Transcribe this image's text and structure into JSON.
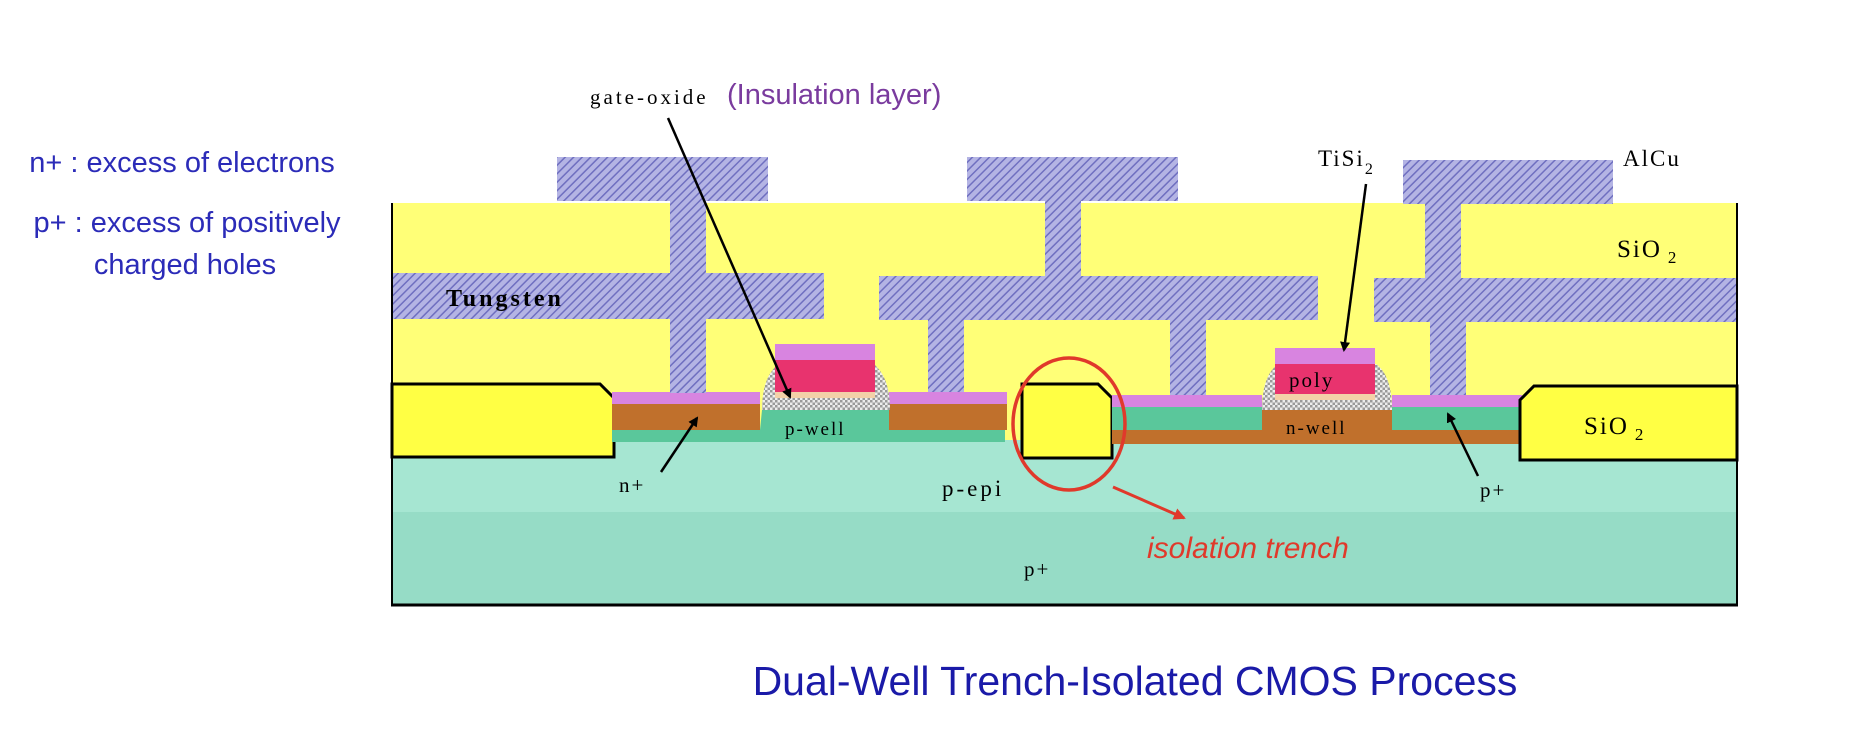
{
  "legend": {
    "n_plus": "n+ : excess of electrons",
    "p_plus_line1": "p+ : excess of positively",
    "p_plus_line2": "charged holes"
  },
  "labels": {
    "gate_oxide": "gate-oxide",
    "insulation_layer": "(Insulation layer)",
    "tisi": "TiSi",
    "tisi_sub": "2",
    "alcu": "AlCu",
    "sio2_top": "SiO",
    "sio2_top_sub": "2",
    "sio2_right": "SiO",
    "sio2_right_sub": "2",
    "tungsten": "Tungsten",
    "poly": "poly",
    "p_well": "p-well",
    "n_well": "n-well",
    "n_plus": "n+",
    "p_epi": "p-epi",
    "p_plus_right": "p+",
    "p_plus_substrate": "p+",
    "isolation_trench": "isolation trench"
  },
  "title": "Dual-Well Trench-Isolated CMOS Process",
  "colors": {
    "title": "#1a1aa8",
    "legend": "#2b2bb8",
    "insulation": "#7a3b9e",
    "trench_callout": "#e0392b",
    "sio2": "#ffff77",
    "metal": "#8f8fd0",
    "substrate": "#a6e6d2",
    "well_green": "#5ac79b",
    "diffusion_brown": "#c0702c",
    "silicide": "#d884e0",
    "poly": "#e8336e"
  }
}
